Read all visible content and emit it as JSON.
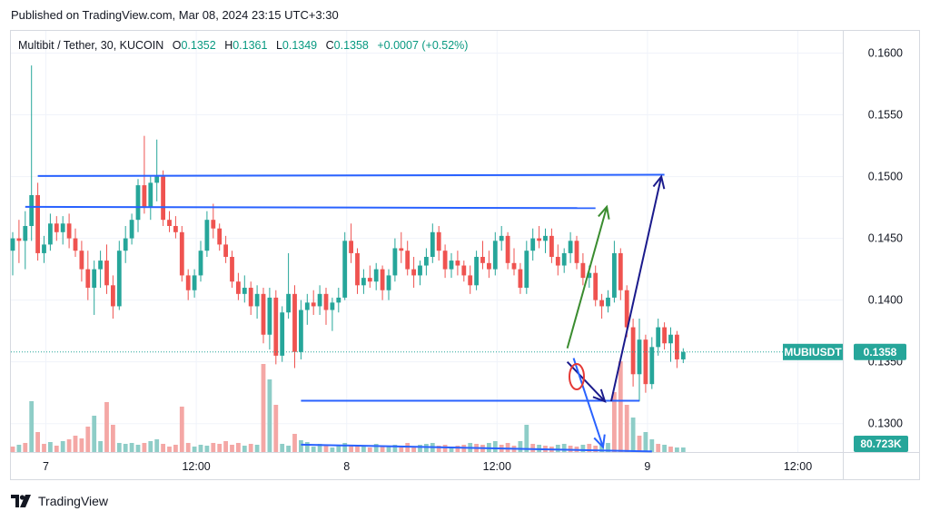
{
  "header": {
    "published": "Published on TradingView.com, Mar 08, 2024 23:15 UTC+3:30"
  },
  "legend": {
    "symbol": "Multibit / Tether, 30, KUCOIN",
    "open_label": "O",
    "open": "0.1352",
    "high_label": "H",
    "high": "0.1361",
    "low_label": "L",
    "low": "0.1349",
    "close_label": "C",
    "close": "0.1358",
    "change": "+0.0007 (+0.52%)"
  },
  "footer": {
    "brand": "TradingView"
  },
  "colors": {
    "up": "#26a69a",
    "down": "#ef5350",
    "vol_up": "#8ecdc7",
    "vol_down": "#f4a7a5",
    "line_blue": "#2962ff",
    "line_green": "#3a8c2f",
    "line_navy": "#1a1a8c",
    "circle_red": "#e53935"
  },
  "chart_data": {
    "type": "candlestick",
    "symbol": "MUBIUSDT",
    "interval": "30",
    "y_ticks": [
      "0.1600",
      "0.1550",
      "0.1500",
      "0.1450",
      "0.1400",
      "0.1350",
      "0.1300"
    ],
    "ylim": [
      0.1277,
      0.1618
    ],
    "x_ticks": [
      "7",
      "12:00",
      "8",
      "12:00",
      "9",
      "12:00"
    ],
    "x_tick_bar_index": [
      5,
      29,
      53,
      77,
      101,
      125
    ],
    "last_price_tag": {
      "symbol": "MUBIUSDT",
      "price": "0.1358"
    },
    "volume_tag": "80.723K",
    "candles": [
      [
        0.144,
        0.1455,
        0.142,
        0.145
      ],
      [
        0.145,
        0.1465,
        0.143,
        0.1448
      ],
      [
        0.1448,
        0.1472,
        0.1425,
        0.146
      ],
      [
        0.146,
        0.159,
        0.1448,
        0.1485
      ],
      [
        0.1485,
        0.1495,
        0.1432,
        0.1438
      ],
      [
        0.1438,
        0.1452,
        0.143,
        0.1445
      ],
      [
        0.1445,
        0.147,
        0.144,
        0.1462
      ],
      [
        0.1462,
        0.1468,
        0.1448,
        0.1455
      ],
      [
        0.1455,
        0.1468,
        0.1445,
        0.1462
      ],
      [
        0.1462,
        0.147,
        0.1442,
        0.145
      ],
      [
        0.145,
        0.1458,
        0.1435,
        0.144
      ],
      [
        0.144,
        0.1448,
        0.1415,
        0.1425
      ],
      [
        0.1425,
        0.144,
        0.14,
        0.141
      ],
      [
        0.141,
        0.1432,
        0.1388,
        0.1425
      ],
      [
        0.1425,
        0.144,
        0.141,
        0.1432
      ],
      [
        0.1432,
        0.1445,
        0.1405,
        0.1412
      ],
      [
        0.1412,
        0.142,
        0.1385,
        0.1395
      ],
      [
        0.1395,
        0.1448,
        0.1392,
        0.144
      ],
      [
        0.144,
        0.146,
        0.143,
        0.145
      ],
      [
        0.145,
        0.147,
        0.1445,
        0.1465
      ],
      [
        0.1465,
        0.1498,
        0.1455,
        0.1493
      ],
      [
        0.1493,
        0.1533,
        0.147,
        0.1475
      ],
      [
        0.1475,
        0.15,
        0.1465,
        0.1495
      ],
      [
        0.1495,
        0.153,
        0.148,
        0.15
      ],
      [
        0.15,
        0.1505,
        0.146,
        0.1465
      ],
      [
        0.1465,
        0.1472,
        0.1455,
        0.146
      ],
      [
        0.146,
        0.1468,
        0.145,
        0.1455
      ],
      [
        0.1455,
        0.146,
        0.1415,
        0.142
      ],
      [
        0.142,
        0.1425,
        0.14,
        0.1408
      ],
      [
        0.1408,
        0.1425,
        0.1402,
        0.142
      ],
      [
        0.142,
        0.1448,
        0.1415,
        0.144
      ],
      [
        0.144,
        0.1472,
        0.1435,
        0.1465
      ],
      [
        0.1465,
        0.1478,
        0.145,
        0.1458
      ],
      [
        0.1458,
        0.1462,
        0.144,
        0.1445
      ],
      [
        0.1445,
        0.1452,
        0.143,
        0.1435
      ],
      [
        0.1435,
        0.144,
        0.141,
        0.1415
      ],
      [
        0.1415,
        0.1422,
        0.14,
        0.1405
      ],
      [
        0.1405,
        0.142,
        0.1398,
        0.141
      ],
      [
        0.141,
        0.1415,
        0.1388,
        0.1395
      ],
      [
        0.1395,
        0.1412,
        0.1385,
        0.1405
      ],
      [
        0.1405,
        0.141,
        0.1365,
        0.1372
      ],
      [
        0.1372,
        0.141,
        0.136,
        0.1402
      ],
      [
        0.1402,
        0.1408,
        0.1348,
        0.1355
      ],
      [
        0.1355,
        0.1395,
        0.135,
        0.139
      ],
      [
        0.139,
        0.1438,
        0.1385,
        0.1405
      ],
      [
        0.1405,
        0.1412,
        0.1345,
        0.1358
      ],
      [
        0.1358,
        0.14,
        0.1352,
        0.1392
      ],
      [
        0.1392,
        0.1405,
        0.138,
        0.1398
      ],
      [
        0.1398,
        0.1408,
        0.1388,
        0.1395
      ],
      [
        0.1395,
        0.1412,
        0.1388,
        0.1405
      ],
      [
        0.1405,
        0.141,
        0.138,
        0.1392
      ],
      [
        0.1392,
        0.1402,
        0.1375,
        0.1398
      ],
      [
        0.1398,
        0.141,
        0.139,
        0.1402
      ],
      [
        0.1402,
        0.1455,
        0.14,
        0.1448
      ],
      [
        0.1448,
        0.1462,
        0.143,
        0.1438
      ],
      [
        0.1438,
        0.1442,
        0.1405,
        0.1412
      ],
      [
        0.1412,
        0.1425,
        0.1405,
        0.1418
      ],
      [
        0.1418,
        0.1428,
        0.141,
        0.1415
      ],
      [
        0.1415,
        0.143,
        0.1408,
        0.1425
      ],
      [
        0.1425,
        0.1428,
        0.14,
        0.1408
      ],
      [
        0.1408,
        0.1425,
        0.14,
        0.142
      ],
      [
        0.142,
        0.145,
        0.1415,
        0.1442
      ],
      [
        0.1442,
        0.1455,
        0.143,
        0.144
      ],
      [
        0.144,
        0.1448,
        0.142,
        0.1425
      ],
      [
        0.1425,
        0.1435,
        0.141,
        0.142
      ],
      [
        0.142,
        0.1432,
        0.1412,
        0.1428
      ],
      [
        0.1428,
        0.1442,
        0.142,
        0.1435
      ],
      [
        0.1435,
        0.1462,
        0.143,
        0.1455
      ],
      [
        0.1455,
        0.146,
        0.1432,
        0.144
      ],
      [
        0.144,
        0.1445,
        0.1418,
        0.1425
      ],
      [
        0.1425,
        0.1438,
        0.1418,
        0.1432
      ],
      [
        0.1432,
        0.144,
        0.142,
        0.1428
      ],
      [
        0.1428,
        0.1432,
        0.1415,
        0.142
      ],
      [
        0.142,
        0.1428,
        0.1405,
        0.1412
      ],
      [
        0.1412,
        0.144,
        0.1408,
        0.1435
      ],
      [
        0.1435,
        0.1448,
        0.1425,
        0.143
      ],
      [
        0.143,
        0.144,
        0.1418,
        0.1425
      ],
      [
        0.1425,
        0.1455,
        0.142,
        0.1448
      ],
      [
        0.1448,
        0.146,
        0.144,
        0.1452
      ],
      [
        0.1452,
        0.1455,
        0.1425,
        0.143
      ],
      [
        0.143,
        0.1442,
        0.142,
        0.1425
      ],
      [
        0.1425,
        0.143,
        0.1405,
        0.141
      ],
      [
        0.141,
        0.1448,
        0.1405,
        0.144
      ],
      [
        0.144,
        0.1458,
        0.1432,
        0.145
      ],
      [
        0.145,
        0.146,
        0.1442,
        0.1448
      ],
      [
        0.1448,
        0.1458,
        0.1438,
        0.1452
      ],
      [
        0.1452,
        0.1458,
        0.143,
        0.1435
      ],
      [
        0.1435,
        0.1445,
        0.142,
        0.1428
      ],
      [
        0.1428,
        0.1442,
        0.1422,
        0.1438
      ],
      [
        0.1438,
        0.1455,
        0.143,
        0.1448
      ],
      [
        0.1448,
        0.1452,
        0.1425,
        0.143
      ],
      [
        0.143,
        0.1438,
        0.1412,
        0.1418
      ],
      [
        0.1418,
        0.1428,
        0.141,
        0.1422
      ],
      [
        0.1422,
        0.1428,
        0.1395,
        0.14
      ],
      [
        0.14,
        0.1405,
        0.1385,
        0.1395
      ],
      [
        0.1395,
        0.1408,
        0.139,
        0.1402
      ],
      [
        0.1402,
        0.1448,
        0.1398,
        0.1438
      ],
      [
        0.1438,
        0.1442,
        0.14,
        0.1408
      ],
      [
        0.1408,
        0.1412,
        0.137,
        0.1378
      ],
      [
        0.1378,
        0.1385,
        0.133,
        0.134
      ],
      [
        0.134,
        0.1385,
        0.1318,
        0.1368
      ],
      [
        0.1368,
        0.1372,
        0.1325,
        0.1332
      ],
      [
        0.1332,
        0.137,
        0.1328,
        0.1362
      ],
      [
        0.1362,
        0.1385,
        0.1355,
        0.1378
      ],
      [
        0.1378,
        0.1382,
        0.136,
        0.1365
      ],
      [
        0.1365,
        0.1378,
        0.135,
        0.1372
      ],
      [
        0.1372,
        0.1375,
        0.1345,
        0.1352
      ],
      [
        0.1352,
        0.1361,
        0.1349,
        0.1358
      ]
    ],
    "volumes": [
      [
        6,
        0
      ],
      [
        8,
        1
      ],
      [
        10,
        0
      ],
      [
        45,
        1
      ],
      [
        22,
        0
      ],
      [
        9,
        0
      ],
      [
        11,
        1
      ],
      [
        7,
        0
      ],
      [
        12,
        1
      ],
      [
        14,
        0
      ],
      [
        18,
        0
      ],
      [
        15,
        0
      ],
      [
        28,
        0
      ],
      [
        40,
        1
      ],
      [
        12,
        1
      ],
      [
        55,
        0
      ],
      [
        30,
        0
      ],
      [
        10,
        1
      ],
      [
        9,
        1
      ],
      [
        10,
        1
      ],
      [
        8,
        1
      ],
      [
        10,
        0
      ],
      [
        12,
        1
      ],
      [
        14,
        1
      ],
      [
        9,
        0
      ],
      [
        6,
        0
      ],
      [
        8,
        0
      ],
      [
        12,
        0
      ],
      [
        10,
        0
      ],
      [
        6,
        1
      ],
      [
        8,
        1
      ],
      [
        7,
        1
      ],
      [
        10,
        0
      ],
      [
        9,
        0
      ],
      [
        12,
        0
      ],
      [
        8,
        0
      ],
      [
        10,
        0
      ],
      [
        7,
        1
      ],
      [
        9,
        0
      ],
      [
        8,
        1
      ],
      [
        12,
        0
      ],
      [
        10,
        1
      ],
      [
        18,
        0
      ],
      [
        9,
        1
      ],
      [
        7,
        1
      ],
      [
        20,
        0
      ],
      [
        13,
        1
      ],
      [
        11,
        1
      ],
      [
        6,
        1
      ],
      [
        9,
        1
      ],
      [
        8,
        0
      ],
      [
        5,
        1
      ],
      [
        7,
        1
      ],
      [
        10,
        1
      ],
      [
        8,
        0
      ],
      [
        7,
        0
      ],
      [
        6,
        1
      ],
      [
        5,
        0
      ],
      [
        9,
        1
      ],
      [
        6,
        0
      ],
      [
        7,
        1
      ],
      [
        8,
        1
      ],
      [
        7,
        0
      ],
      [
        10,
        0
      ],
      [
        6,
        0
      ],
      [
        8,
        1
      ],
      [
        9,
        1
      ],
      [
        10,
        1
      ],
      [
        7,
        0
      ],
      [
        8,
        0
      ],
      [
        6,
        1
      ],
      [
        7,
        0
      ],
      [
        8,
        0
      ],
      [
        10,
        1
      ],
      [
        9,
        0
      ],
      [
        8,
        0
      ],
      [
        10,
        1
      ],
      [
        12,
        1
      ],
      [
        8,
        0
      ],
      [
        10,
        0
      ],
      [
        7,
        0
      ],
      [
        12,
        1
      ],
      [
        14,
        1
      ],
      [
        9,
        0
      ],
      [
        8,
        1
      ],
      [
        7,
        0
      ],
      [
        6,
        0
      ],
      [
        8,
        1
      ],
      [
        9,
        1
      ],
      [
        7,
        0
      ],
      [
        6,
        0
      ],
      [
        8,
        1
      ],
      [
        9,
        0
      ],
      [
        7,
        0
      ],
      [
        8,
        1
      ],
      [
        10,
        1
      ],
      [
        9,
        0
      ],
      [
        12,
        0
      ],
      [
        15,
        0
      ],
      [
        20,
        1
      ],
      [
        18,
        0
      ],
      [
        22,
        1
      ],
      [
        14,
        1
      ],
      [
        9,
        0
      ],
      [
        8,
        1
      ],
      [
        6,
        0
      ],
      [
        5,
        1
      ],
      [
        5,
        1
      ]
    ],
    "volume_spikes": {
      "13": 40,
      "27": 50,
      "41": 52,
      "42": 38,
      "82": 30,
      "96": 45,
      "97": 62,
      "98": 48,
      "99": 32
    },
    "drawings": {
      "hlines": [
        {
          "color": "line_blue",
          "p1": [
            4,
            0.15005
          ],
          "p2": [
            104,
            0.15015
          ]
        },
        {
          "color": "line_blue",
          "p1": [
            2,
            0.14755
          ],
          "p2": [
            93,
            0.14745
          ]
        },
        {
          "color": "line_blue",
          "p1": [
            46,
            0.13185
          ],
          "p2": [
            100,
            0.13185
          ]
        },
        {
          "color": "line_blue",
          "p1": [
            46,
            0.1283
          ],
          "p2": [
            102,
            0.12775
          ]
        }
      ],
      "arrows": [
        {
          "color": "line_green",
          "p1": [
            88.5,
            0.1361
          ],
          "p2": [
            94.8,
            0.14755
          ]
        },
        {
          "color": "line_navy",
          "p1": [
            88.5,
            0.135
          ],
          "p2": [
            94.5,
            0.1318
          ]
        },
        {
          "color": "line_navy",
          "p1": [
            95.5,
            0.1318
          ],
          "p2": [
            103.5,
            0.15
          ]
        },
        {
          "color": "line_blue",
          "p1": [
            89.5,
            0.1353
          ],
          "p2": [
            94.2,
            0.1281
          ]
        }
      ],
      "circle": {
        "color": "circle_red",
        "center": [
          90.0,
          0.1338
        ]
      }
    }
  }
}
